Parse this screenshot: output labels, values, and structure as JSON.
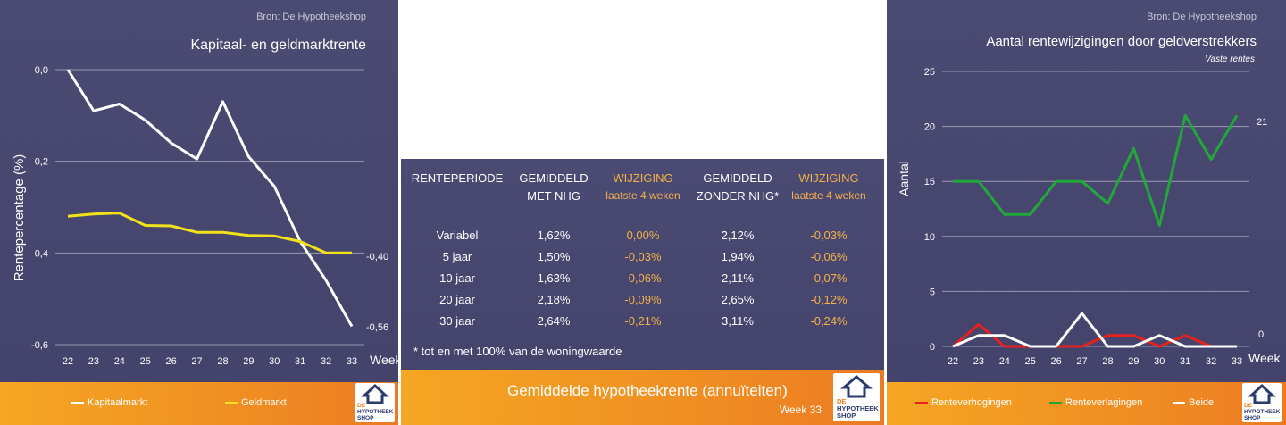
{
  "left_panel": {
    "source": "Bron: De Hypotheekshop",
    "title": "Kapitaal- en geldmarktrente",
    "ylabel": "Rentepercentage (%)",
    "xlabel": "Week",
    "end_labels": [
      "-0,40",
      "-0,56"
    ],
    "legend": [
      "Kapitaalmarkt",
      "Geldmarkt"
    ]
  },
  "middle_panel": {
    "headers": [
      [
        "RENTEPERIODE",
        ""
      ],
      [
        "GEMIDDELD",
        "MET NHG"
      ],
      [
        "WIJZIGING",
        "laatste 4 weken"
      ],
      [
        "GEMIDDELD",
        "ZONDER NHG*"
      ],
      [
        "WIJZIGING",
        "laatste 4 weken"
      ]
    ],
    "rows": [
      [
        "Variabel",
        "1,62%",
        "0,00%",
        "2,12%",
        "-0,03%"
      ],
      [
        "5 jaar",
        "1,50%",
        "-0,03%",
        "1,94%",
        "-0,06%"
      ],
      [
        "10 jaar",
        "1,63%",
        "-0,06%",
        "2,11%",
        "-0,07%"
      ],
      [
        "20 jaar",
        "2,18%",
        "-0,09%",
        "2,65%",
        "-0,12%"
      ],
      [
        "30 jaar",
        "2,64%",
        "-0,21%",
        "3,11%",
        "-0,24%"
      ]
    ],
    "footnote": "* tot en met 100% van de woningwaarde",
    "banner_title": "Gemiddelde hypotheekrente (annuïteiten)",
    "banner_week": "Week 33"
  },
  "right_panel": {
    "source": "Bron: De Hypotheekshop",
    "title": "Aantal rentewijzigingen door geldverstrekkers",
    "subtitle": "Vaste rentes",
    "ylabel": "Aantal",
    "xlabel": "Week",
    "end_labels": [
      "21",
      "0"
    ],
    "legend": [
      "Renteverhogingen",
      "Renteverlagingen",
      "Beide"
    ]
  },
  "logo": {
    "line1": "DE",
    "line2": "HYPOTHEEK",
    "line3": "SHOP"
  },
  "colors": {
    "kapitaal": "#ffffff",
    "geld": "#f2e21a",
    "verhoging": "#e8201e",
    "verlaging": "#22a83a",
    "beide": "#ffffff",
    "background": "#47476f",
    "banner": "#ef8a22"
  },
  "chart_data": [
    {
      "type": "line",
      "title": "Kapitaal- en geldmarktrente",
      "xlabel": "Week",
      "ylabel": "Rentepercentage (%)",
      "x": [
        22,
        23,
        24,
        25,
        26,
        27,
        28,
        29,
        30,
        31,
        32,
        33
      ],
      "ylim": [
        -0.6,
        0.0
      ],
      "yticks": [
        "0,0",
        "-0,2",
        "-0,4",
        "-0,6"
      ],
      "ytick_values": [
        0.0,
        -0.2,
        -0.4,
        -0.6
      ],
      "series": [
        {
          "name": "Kapitaalmarkt",
          "values": [
            0.0,
            -0.09,
            -0.075,
            -0.11,
            -0.16,
            -0.195,
            -0.07,
            -0.19,
            -0.255,
            -0.375,
            -0.46,
            -0.56
          ]
        },
        {
          "name": "Geldmarkt",
          "values": [
            -0.32,
            -0.315,
            -0.313,
            -0.34,
            -0.341,
            -0.355,
            -0.355,
            -0.362,
            -0.363,
            -0.375,
            -0.4,
            -0.4
          ]
        }
      ],
      "grid": true,
      "legend": "bottom"
    },
    {
      "type": "line",
      "title": "Aantal rentewijzigingen door geldverstrekkers",
      "subtitle": "Vaste rentes",
      "xlabel": "Week",
      "ylabel": "Aantal",
      "x": [
        22,
        23,
        24,
        25,
        26,
        27,
        28,
        29,
        30,
        31,
        32,
        33
      ],
      "ylim": [
        0,
        25
      ],
      "yticks": [
        "0",
        "5",
        "10",
        "15",
        "20",
        "25"
      ],
      "ytick_values": [
        0,
        5,
        10,
        15,
        20,
        25
      ],
      "series": [
        {
          "name": "Renteverhogingen",
          "values": [
            0,
            2,
            0,
            0,
            0,
            0,
            1,
            1,
            0,
            1,
            0,
            0
          ]
        },
        {
          "name": "Renteverlagingen",
          "values": [
            15,
            15,
            12,
            12,
            15,
            15,
            13,
            18,
            11,
            21,
            17,
            21
          ]
        },
        {
          "name": "Beide",
          "values": [
            0,
            1,
            1,
            0,
            0,
            3,
            0,
            0,
            1,
            0,
            0,
            0
          ]
        }
      ],
      "grid": true,
      "legend": "bottom"
    }
  ]
}
